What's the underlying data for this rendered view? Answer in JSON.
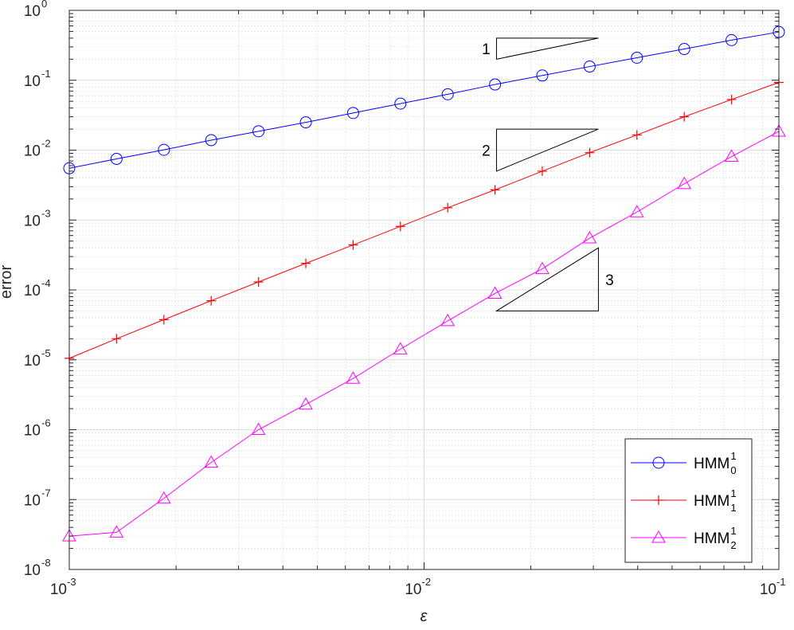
{
  "chart_data": {
    "type": "line",
    "xscale": "log",
    "yscale": "log",
    "xlim": [
      0.001,
      0.1
    ],
    "ylim": [
      1e-08,
      1
    ],
    "xlabel": "ε",
    "ylabel": "error",
    "grid": true,
    "minor_grid": true,
    "x_ticks": [
      {
        "value": 0.001,
        "base": "10",
        "exp": "-3"
      },
      {
        "value": 0.01,
        "base": "10",
        "exp": "-2"
      },
      {
        "value": 0.1,
        "base": "10",
        "exp": "-1"
      }
    ],
    "y_ticks": [
      {
        "value": 1,
        "base": "10",
        "exp": "0"
      },
      {
        "value": 0.1,
        "base": "10",
        "exp": "-1"
      },
      {
        "value": 0.01,
        "base": "10",
        "exp": "-2"
      },
      {
        "value": 0.001,
        "base": "10",
        "exp": "-3"
      },
      {
        "value": 0.0001,
        "base": "10",
        "exp": "-4"
      },
      {
        "value": 1e-05,
        "base": "10",
        "exp": "-5"
      },
      {
        "value": 1e-06,
        "base": "10",
        "exp": "-6"
      },
      {
        "value": 1e-07,
        "base": "10",
        "exp": "-7"
      },
      {
        "value": 1e-08,
        "base": "10",
        "exp": "-8"
      }
    ],
    "x": [
      0.001,
      0.001359,
      0.001848,
      0.002512,
      0.003415,
      0.004642,
      0.00631,
      0.008577,
      0.01166,
      0.01585,
      0.02154,
      0.02929,
      0.03981,
      0.05412,
      0.07356,
      0.1
    ],
    "series": [
      {
        "name": "HMM",
        "sup": "1",
        "sub": "0",
        "color": "#0000ff",
        "marker": "circle",
        "values": [
          0.0055,
          0.0075,
          0.0101,
          0.0139,
          0.0186,
          0.025,
          0.034,
          0.0463,
          0.063,
          0.087,
          0.117,
          0.157,
          0.21,
          0.28,
          0.375,
          0.49
        ]
      },
      {
        "name": "HMM",
        "sup": "1",
        "sub": "1",
        "color": "#ff0000",
        "marker": "plus",
        "values": [
          1.05e-05,
          2e-05,
          3.75e-05,
          7e-05,
          0.00013,
          0.00024,
          0.00044,
          0.00081,
          0.0015,
          0.0027,
          0.005,
          0.0092,
          0.0165,
          0.03,
          0.053,
          0.093
        ]
      },
      {
        "name": "HMM",
        "sup": "1",
        "sub": "2",
        "color": "#ff00ff",
        "marker": "triangle",
        "values": [
          3e-08,
          3.4e-08,
          1.04e-07,
          3.4e-07,
          1e-06,
          2.3e-06,
          5.4e-06,
          1.42e-05,
          3.6e-05,
          8.9e-05,
          0.0002,
          0.00055,
          0.0013,
          0.0033,
          0.0081,
          0.0185
        ]
      }
    ],
    "slope_triangles": [
      {
        "label": "1",
        "x": [
          0.016,
          0.031
        ],
        "y": [
          0.2,
          0.4
        ],
        "label_side": "left"
      },
      {
        "label": "2",
        "x": [
          0.016,
          0.031
        ],
        "y": [
          0.005,
          0.02
        ],
        "label_side": "left"
      },
      {
        "label": "3",
        "x": [
          0.016,
          0.031
        ],
        "y": [
          5e-05,
          0.0004
        ],
        "label_side": "right"
      }
    ],
    "legend_position": "bottom-right"
  }
}
